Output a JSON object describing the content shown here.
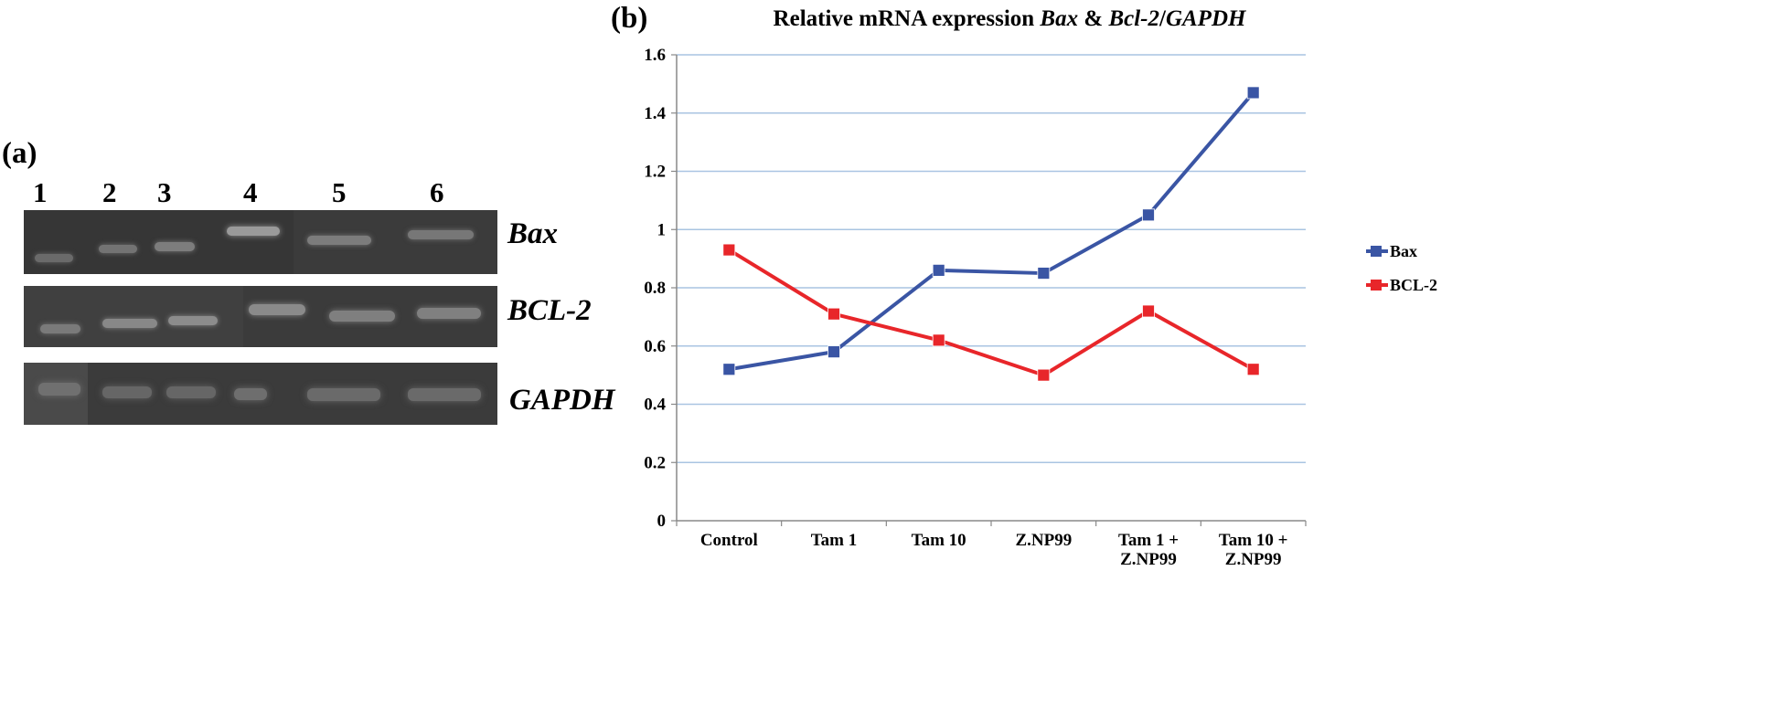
{
  "panel_a": {
    "label": "(a)",
    "lanes": [
      "1",
      "2",
      "3",
      "4",
      "5",
      "6"
    ],
    "genes": [
      "Bax",
      "BCL-2",
      "GAPDH"
    ]
  },
  "panel_b": {
    "label": "(b)",
    "title_parts": [
      "Relative mRNA expression ",
      "Bax",
      " & ",
      "Bcl-2",
      "/",
      "GAPDH"
    ]
  },
  "chart_data": {
    "type": "line",
    "title": "Relative mRNA expression Bax & Bcl-2/GAPDH",
    "categories": [
      [
        "Control"
      ],
      [
        "Tam 1"
      ],
      [
        "Tam 10"
      ],
      [
        "Z.NP99"
      ],
      [
        "Tam 1 +",
        "Z.NP99"
      ],
      [
        "Tam 10 +",
        "Z.NP99"
      ]
    ],
    "series": [
      {
        "name": "Bax",
        "color": "#3a55a4",
        "values": [
          0.52,
          0.58,
          0.86,
          0.85,
          1.05,
          1.47
        ]
      },
      {
        "name": "BCL-2",
        "color": "#e8262a",
        "values": [
          0.93,
          0.71,
          0.62,
          0.5,
          0.72,
          0.52
        ]
      }
    ],
    "ylim": [
      0,
      1.6
    ],
    "yticks": [
      0,
      0.2,
      0.4,
      0.6,
      0.8,
      1,
      1.2,
      1.4,
      1.6
    ],
    "ytick_labels": [
      "0",
      "0.2",
      "0.4",
      "0.6",
      "0.8",
      "1",
      "1.2",
      "1.4",
      "1.6"
    ],
    "grid": true,
    "legend": "right"
  }
}
